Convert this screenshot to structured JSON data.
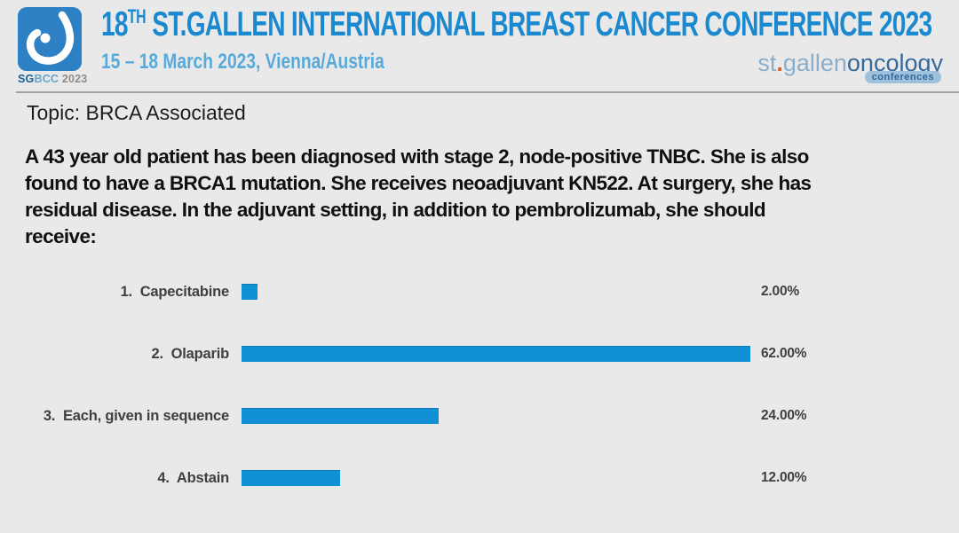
{
  "colors": {
    "background": "#e9e9e9",
    "title_blue": "#1b89d0",
    "subtitle_blue": "#58aadb",
    "logo_blue": "#2d80c4",
    "bar_blue": "#1191d5"
  },
  "header": {
    "logo_caption_bold": "SG",
    "logo_caption_light": "BCC",
    "logo_caption_year": " 2023",
    "title_number": "18",
    "title_superscript": "TH",
    "title_rest": " ST.GALLEN INTERNATIONAL BREAST CANCER CONFERENCE 2023",
    "subtitle": "15 – 18 March 2023, Vienna/Austria",
    "brand_part1": "st",
    "brand_dot": ".",
    "brand_part2": "gallen",
    "brand_part3": "oncology",
    "brand_sub": "conferences"
  },
  "topic": "Topic: BRCA Associated",
  "question": "A 43 year old patient has been diagnosed with stage 2, node-positive TNBC. She is also\nfound to have a BRCA1 mutation. She receives neoadjuvant KN522. At surgery, she has\nresidual disease. In the adjuvant setting, in addition to pembrolizumab, she should\nreceive:",
  "chart_data": {
    "type": "bar",
    "orientation": "horizontal",
    "title": "",
    "categories": [
      "1.  Capecitabine",
      "2.  Olaparib",
      "3.  Each, given in sequence",
      "4.  Abstain"
    ],
    "values": [
      2.0,
      62.0,
      24.0,
      12.0
    ],
    "value_labels": [
      "2.00%",
      "62.00%",
      "24.00%",
      "12.00%"
    ],
    "bar_color": "#1191d5",
    "xlim": [
      0,
      62
    ],
    "grid": false,
    "legend": false
  }
}
